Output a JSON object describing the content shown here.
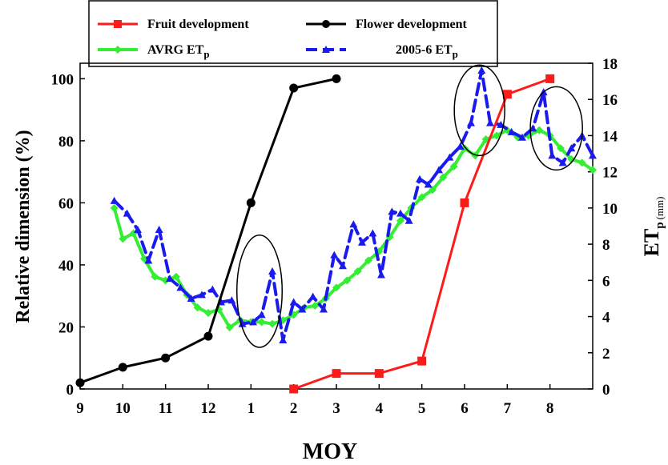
{
  "chart_data": {
    "type": "line",
    "xlabel": "MOY",
    "ylabel_left": "Relative dimension (%)",
    "ylabel_right": "ET",
    "ylabel_right_sub": "p",
    "ylabel_right_unit": "(mm)",
    "x_tick_labels": [
      "9",
      "10",
      "11",
      "12",
      "1",
      "2",
      "3",
      "4",
      "5",
      "6",
      "7",
      "8"
    ],
    "x_tick_positions": [
      9,
      10,
      11,
      12,
      13,
      14,
      15,
      16,
      17,
      18,
      19,
      20
    ],
    "xlim": [
      9,
      21
    ],
    "ylim_left": [
      0,
      105
    ],
    "yticks_left": [
      0,
      20,
      40,
      60,
      80,
      100
    ],
    "ylim_right": [
      0,
      18
    ],
    "yticks_right": [
      0,
      2,
      4,
      6,
      8,
      10,
      12,
      14,
      16,
      18
    ],
    "legend": [
      {
        "text": "Fruit development",
        "sub": ""
      },
      {
        "text": "Flower development",
        "sub": ""
      },
      {
        "text": "AVRG ET",
        "sub": "p"
      },
      {
        "text": "2005-6 ET",
        "sub": "p"
      }
    ],
    "series": [
      {
        "name": "Flower development",
        "axis": "left",
        "color": "#000000",
        "marker": "circle",
        "dash": "",
        "x": [
          9,
          10,
          11,
          12,
          13,
          14,
          15
        ],
        "y": [
          2,
          7,
          10,
          17,
          60,
          97,
          100
        ]
      },
      {
        "name": "Fruit development",
        "axis": "left",
        "color": "#ff1a1a",
        "marker": "square",
        "dash": "",
        "x": [
          14,
          15,
          16,
          17,
          18,
          19,
          20
        ],
        "y": [
          0,
          5,
          5,
          9,
          60,
          95,
          100
        ]
      },
      {
        "name": "AVRG ETp",
        "axis": "right",
        "color": "#33ee33",
        "marker": "diamond",
        "dash": "",
        "x": [
          9.8,
          10.0,
          10.25,
          10.5,
          10.75,
          11.0,
          11.25,
          11.5,
          11.75,
          12.0,
          12.25,
          12.5,
          12.75,
          13.0,
          13.25,
          13.5,
          13.75,
          14.0,
          14.25,
          14.5,
          14.75,
          15.0,
          15.25,
          15.5,
          15.75,
          16.0,
          16.25,
          16.5,
          16.75,
          17.0,
          17.25,
          17.5,
          17.75,
          18.0,
          18.25,
          18.5,
          18.75,
          19.0,
          19.25,
          19.5,
          19.75,
          20.0,
          20.25,
          20.5,
          20.75,
          21.0
        ],
        "y": [
          10.0,
          8.3,
          8.6,
          7.2,
          6.2,
          6.0,
          6.2,
          5.2,
          4.5,
          4.2,
          4.4,
          3.4,
          3.8,
          3.7,
          3.7,
          3.6,
          3.8,
          4.1,
          4.5,
          4.6,
          5.0,
          5.6,
          6.0,
          6.5,
          7.1,
          7.6,
          8.4,
          9.3,
          10.0,
          10.6,
          11.0,
          11.7,
          12.3,
          13.3,
          12.9,
          13.8,
          14.0,
          14.3,
          13.9,
          14.0,
          14.3,
          14.0,
          13.3,
          12.7,
          12.5,
          12.1
        ]
      },
      {
        "name": "2005-6 ETp",
        "axis": "right",
        "color": "#1a1aee",
        "marker": "triangle",
        "dash": "14,7",
        "x": [
          9.8,
          10.1,
          10.35,
          10.6,
          10.85,
          11.1,
          11.35,
          11.6,
          11.85,
          12.1,
          12.3,
          12.55,
          12.8,
          13.05,
          13.25,
          13.5,
          13.75,
          14.0,
          14.2,
          14.45,
          14.7,
          14.95,
          15.15,
          15.4,
          15.6,
          15.85,
          16.05,
          16.3,
          16.5,
          16.7,
          16.95,
          17.15,
          17.4,
          17.65,
          17.9,
          18.15,
          18.4,
          18.6,
          18.85,
          19.1,
          19.35,
          19.6,
          19.85,
          20.05,
          20.3,
          20.5,
          20.75,
          21.0
        ],
        "y": [
          10.4,
          9.7,
          8.8,
          7.1,
          8.8,
          6.1,
          5.6,
          5.0,
          5.2,
          5.5,
          4.8,
          4.9,
          3.6,
          3.7,
          4.1,
          6.5,
          2.7,
          4.8,
          4.4,
          5.1,
          4.4,
          7.4,
          6.8,
          9.1,
          8.1,
          8.6,
          6.3,
          9.8,
          9.7,
          9.3,
          11.6,
          11.3,
          12.1,
          12.8,
          13.4,
          14.7,
          17.6,
          14.7,
          14.6,
          14.2,
          13.9,
          14.4,
          16.4,
          12.9,
          12.5,
          13.3,
          14.0,
          12.9
        ]
      }
    ],
    "ellipses": [
      {
        "x": 13.2,
        "y_right": 5.4,
        "rx_months": 0.53,
        "ry_units": 3.1
      },
      {
        "x": 18.35,
        "y_right": 15.4,
        "rx_months": 0.59,
        "ry_units": 2.5
      },
      {
        "x": 20.15,
        "y_right": 14.4,
        "rx_months": 0.61,
        "ry_units": 2.3
      }
    ]
  }
}
